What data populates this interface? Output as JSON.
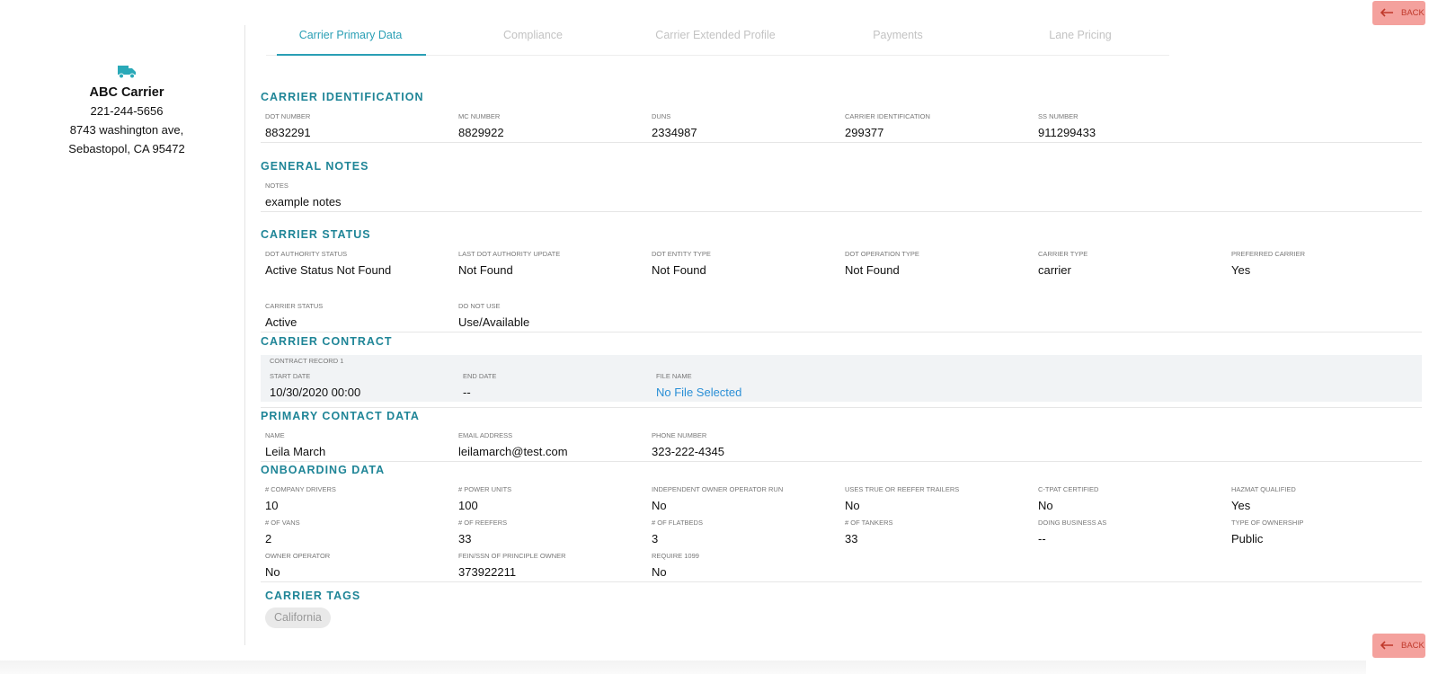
{
  "back_label": "BACK",
  "sidebar": {
    "name": "ABC Carrier",
    "phone": "221-244-5656",
    "address_line1": "8743 washington ave,",
    "address_line2": "Sebastopol, CA 95472"
  },
  "tabs": [
    {
      "label": "Carrier Primary Data",
      "active": true
    },
    {
      "label": "Compliance",
      "active": false
    },
    {
      "label": "Carrier Extended Profile",
      "active": false
    },
    {
      "label": "Payments",
      "active": false
    },
    {
      "label": "Lane Pricing",
      "active": false
    }
  ],
  "sections": [
    {
      "title": "CARRIER IDENTIFICATION",
      "rows": [
        [
          {
            "label": "DOT NUMBER",
            "value": "8832291"
          },
          {
            "label": "MC NUMBER",
            "value": "8829922"
          },
          {
            "label": "DUNS",
            "value": "2334987"
          },
          {
            "label": "CARRIER IDENTIFICATION",
            "value": "299377"
          },
          {
            "label": "SS NUMBER",
            "value": "911299433"
          }
        ]
      ]
    },
    {
      "title": "GENERAL NOTES",
      "rows": [
        [
          {
            "label": "NOTES",
            "value": "example notes"
          }
        ]
      ]
    },
    {
      "title": "CARRIER STATUS",
      "rows": [
        [
          {
            "label": "DOT AUTHORITY STATUS",
            "value": "Active Status Not Found"
          },
          {
            "label": "LAST DOT AUTHORITY UPDATE",
            "value": "Not Found"
          },
          {
            "label": "DOT ENTITY TYPE",
            "value": "Not Found"
          },
          {
            "label": "DOT OPERATION TYPE",
            "value": "Not Found"
          },
          {
            "label": "CARRIER TYPE",
            "value": "carrier"
          },
          {
            "label": "PREFERRED CARRIER",
            "value": "Yes"
          }
        ],
        [
          {
            "label": "CARRIER STATUS",
            "value": "Active"
          },
          {
            "label": "DO NOT USE",
            "value": "Use/Available"
          }
        ]
      ]
    },
    {
      "title": "CARRIER CONTRACT",
      "record_label": "CONTRACT RECORD 1",
      "rows": [
        [
          {
            "label": "START DATE",
            "value": "10/30/2020 00:00"
          },
          {
            "label": "END DATE",
            "value": "--"
          },
          {
            "label": "FILE NAME",
            "value": "No File Selected",
            "link": true
          }
        ]
      ]
    },
    {
      "title": "PRIMARY CONTACT DATA",
      "rows": [
        [
          {
            "label": "NAME",
            "value": "Leila March"
          },
          {
            "label": "EMAIL ADDRESS",
            "value": "leilamarch@test.com"
          },
          {
            "label": "PHONE NUMBER",
            "value": "323-222-4345"
          }
        ]
      ]
    },
    {
      "title": "ONBOARDING DATA",
      "rows": [
        [
          {
            "label": "# COMPANY DRIVERS",
            "value": "10"
          },
          {
            "label": "# POWER UNITS",
            "value": "100"
          },
          {
            "label": "INDEPENDENT OWNER OPERATOR RUN",
            "value": "No"
          },
          {
            "label": "USES TRUE OR REEFER TRAILERS",
            "value": "No"
          },
          {
            "label": "C-TPAT CERTIFIED",
            "value": "No"
          },
          {
            "label": "HAZMAT QUALIFIED",
            "value": "Yes"
          }
        ],
        [
          {
            "label": "# OF VANS",
            "value": "2"
          },
          {
            "label": "# OF REEFERS",
            "value": "33"
          },
          {
            "label": "# OF FLATBEDS",
            "value": "3"
          },
          {
            "label": "# OF TANKERS",
            "value": "33"
          },
          {
            "label": "DOING BUSINESS AS",
            "value": "--"
          },
          {
            "label": "TYPE OF OWNERSHIP",
            "value": "Public"
          }
        ],
        [
          {
            "label": "OWNER OPERATOR",
            "value": "No"
          },
          {
            "label": "FEIN/SSN OF PRINCIPLE OWNER",
            "value": "373922211"
          },
          {
            "label": "REQUIRE 1099",
            "value": "No"
          }
        ]
      ]
    },
    {
      "title": "CARRIER TAGS",
      "tags": [
        "California"
      ]
    }
  ]
}
